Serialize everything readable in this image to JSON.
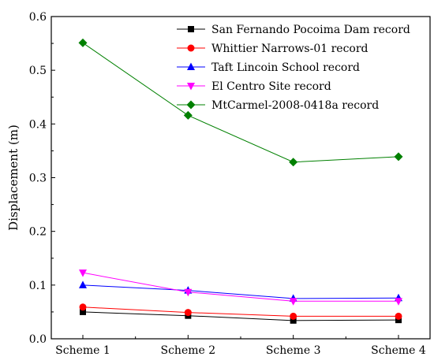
{
  "chart_data": {
    "type": "line",
    "title": "",
    "xlabel": "",
    "ylabel": "Displacement (m)",
    "categories": [
      "Scheme 1",
      "Scheme 2",
      "Scheme 3",
      "Scheme 4"
    ],
    "ylim": [
      0,
      0.6
    ],
    "yticks": [
      "0.0",
      "0.1",
      "0.2",
      "0.3",
      "0.4",
      "0.5",
      "0.6"
    ],
    "grid": false,
    "legend_position": "top-right",
    "series": [
      {
        "name": "San Fernando Pocoima Dam record",
        "color": "#000000",
        "marker": "square",
        "values": [
          0.05,
          0.043,
          0.034,
          0.035
        ]
      },
      {
        "name": "Whittier Narrows-01 record",
        "color": "#ff0000",
        "marker": "circle",
        "values": [
          0.059,
          0.049,
          0.042,
          0.042
        ]
      },
      {
        "name": "Taft Lincoin School record",
        "color": "#0000ff",
        "marker": "triangle-up",
        "values": [
          0.1,
          0.09,
          0.075,
          0.076
        ]
      },
      {
        "name": "El Centro Site record",
        "color": "#ff00ff",
        "marker": "triangle-down",
        "values": [
          0.123,
          0.087,
          0.07,
          0.07
        ]
      },
      {
        "name": "MtCarmel-2008-0418a record",
        "color": "#008000",
        "marker": "diamond",
        "values": [
          0.551,
          0.416,
          0.329,
          0.339
        ]
      }
    ]
  }
}
